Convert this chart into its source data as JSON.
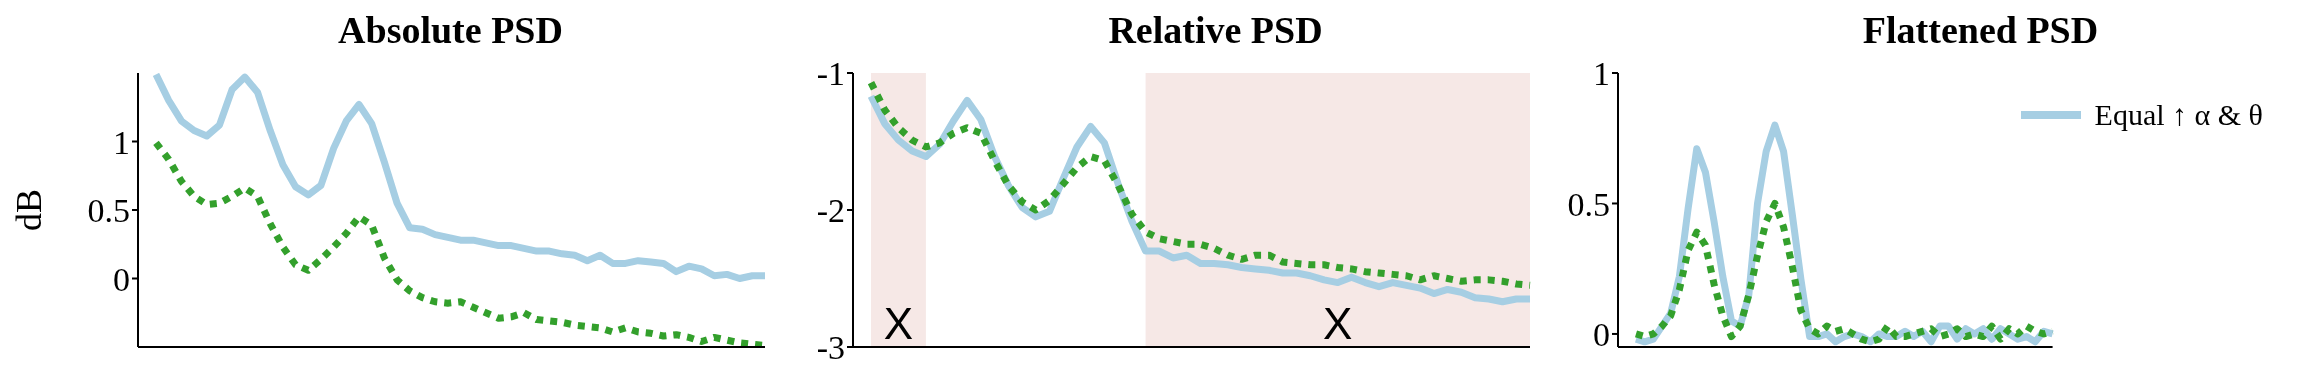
{
  "chart_data": [
    {
      "type": "line",
      "title": "Absolute PSD",
      "ylabel": "dB",
      "tick_labels": "y",
      "ylim": [
        -0.5,
        1.5
      ],
      "yticks": [
        0,
        0.5,
        1
      ],
      "categories": [
        null,
        null,
        null,
        null,
        null,
        null,
        null,
        null,
        null,
        null,
        null,
        null,
        null,
        null,
        null,
        null,
        null,
        null,
        null,
        null,
        null,
        null,
        null,
        null,
        null,
        null,
        null,
        null,
        null,
        null,
        null,
        null,
        null,
        null,
        null,
        null,
        null,
        null,
        null,
        null,
        null,
        null,
        null,
        null,
        null,
        null,
        null,
        null,
        null
      ],
      "series": [
        {
          "color": "#a6cee3",
          "line_style": "solid",
          "values": [
            1.49,
            1.3,
            1.15,
            1.08,
            1.04,
            1.12,
            1.38,
            1.47,
            1.36,
            1.08,
            0.83,
            0.67,
            0.61,
            0.68,
            0.95,
            1.15,
            1.27,
            1.13,
            0.85,
            0.55,
            0.37,
            0.36,
            0.32,
            0.3,
            0.28,
            0.28,
            0.26,
            0.24,
            0.24,
            0.22,
            0.2,
            0.2,
            0.18,
            0.17,
            0.13,
            0.17,
            0.11,
            0.11,
            0.13,
            0.12,
            0.11,
            0.05,
            0.09,
            0.07,
            0.02,
            0.03,
            0.0,
            0.02,
            0.02
          ]
        },
        {
          "color": "#33a02c",
          "line_style": "dotted",
          "values": [
            0.99,
            0.87,
            0.71,
            0.6,
            0.54,
            0.55,
            0.6,
            0.66,
            0.6,
            0.4,
            0.23,
            0.1,
            0.06,
            0.14,
            0.23,
            0.33,
            0.45,
            0.39,
            0.15,
            -0.01,
            -0.09,
            -0.14,
            -0.17,
            -0.18,
            -0.17,
            -0.21,
            -0.25,
            -0.29,
            -0.28,
            -0.25,
            -0.3,
            -0.31,
            -0.32,
            -0.34,
            -0.35,
            -0.36,
            -0.39,
            -0.36,
            -0.39,
            -0.4,
            -0.42,
            -0.41,
            -0.43,
            -0.46,
            -0.43,
            -0.45,
            -0.47,
            -0.48,
            -0.49
          ]
        }
      ]
    },
    {
      "type": "line",
      "title": "Relative PSD",
      "tick_labels": "y",
      "ylim": [
        -3,
        -1
      ],
      "yticks": [
        -1,
        -2,
        -3
      ],
      "categories": [
        null,
        null,
        null,
        null,
        null,
        null,
        null,
        null,
        null,
        null,
        null,
        null,
        null,
        null,
        null,
        null,
        null,
        null,
        null,
        null,
        null,
        null,
        null,
        null,
        null,
        null,
        null,
        null,
        null,
        null,
        null,
        null,
        null,
        null,
        null,
        null,
        null,
        null,
        null,
        null,
        null,
        null,
        null,
        null,
        null,
        null,
        null,
        null,
        null
      ],
      "annotations": [
        "X",
        "X"
      ],
      "series": [
        {
          "color": "#a6cee3",
          "line_style": "solid",
          "values": [
            -1.17,
            -1.37,
            -1.49,
            -1.57,
            -1.61,
            -1.52,
            -1.35,
            -1.2,
            -1.34,
            -1.61,
            -1.82,
            -1.98,
            -2.05,
            -2.01,
            -1.77,
            -1.54,
            -1.39,
            -1.51,
            -1.81,
            -2.08,
            -2.3,
            -2.3,
            -2.35,
            -2.33,
            -2.39,
            -2.39,
            -2.4,
            -2.42,
            -2.43,
            -2.44,
            -2.46,
            -2.46,
            -2.48,
            -2.51,
            -2.53,
            -2.49,
            -2.53,
            -2.56,
            -2.53,
            -2.55,
            -2.57,
            -2.61,
            -2.58,
            -2.6,
            -2.64,
            -2.65,
            -2.67,
            -2.65,
            -2.65
          ]
        },
        {
          "color": "#33a02c",
          "line_style": "dotted",
          "values": [
            -1.07,
            -1.27,
            -1.4,
            -1.49,
            -1.54,
            -1.51,
            -1.44,
            -1.4,
            -1.44,
            -1.64,
            -1.82,
            -1.94,
            -2.0,
            -1.93,
            -1.81,
            -1.69,
            -1.61,
            -1.64,
            -1.82,
            -2.03,
            -2.16,
            -2.21,
            -2.23,
            -2.25,
            -2.25,
            -2.28,
            -2.33,
            -2.36,
            -2.33,
            -2.33,
            -2.38,
            -2.39,
            -2.4,
            -2.4,
            -2.42,
            -2.43,
            -2.45,
            -2.46,
            -2.47,
            -2.48,
            -2.51,
            -2.48,
            -2.5,
            -2.52,
            -2.51,
            -2.51,
            -2.52,
            -2.54,
            -2.55
          ]
        }
      ]
    },
    {
      "type": "line",
      "title": "Flattened PSD",
      "tick_labels": "y",
      "legend": "top right",
      "ylim": [
        -0.05,
        1
      ],
      "yticks": [
        0,
        0.5,
        1
      ],
      "categories": [
        null,
        null,
        null,
        null,
        null,
        null,
        null,
        null,
        null,
        null,
        null,
        null,
        null,
        null,
        null,
        null,
        null,
        null,
        null,
        null,
        null,
        null,
        null,
        null,
        null,
        null,
        null,
        null,
        null,
        null,
        null,
        null,
        null,
        null,
        null,
        null,
        null,
        null,
        null,
        null,
        null,
        null,
        null,
        null,
        null,
        null,
        null,
        null,
        null
      ],
      "series": [
        {
          "name": "Equal ↑ α & θ",
          "color": "#a6cee3",
          "line_style": "solid",
          "values": [
            -0.02,
            -0.03,
            -0.02,
            0.03,
            0.08,
            0.22,
            0.48,
            0.71,
            0.62,
            0.43,
            0.22,
            0.05,
            0.03,
            0.15,
            0.5,
            0.7,
            0.8,
            0.7,
            0.46,
            0.21,
            -0.01,
            -0.01,
            0.0,
            -0.03,
            -0.01,
            0.0,
            -0.01,
            -0.03,
            0.0,
            -0.01,
            -0.01,
            0.01,
            -0.01,
            0.01,
            -0.03,
            0.03,
            0.03,
            -0.02,
            0.02,
            0.0,
            0.02,
            -0.02,
            0.02,
            0.0,
            -0.02,
            -0.01,
            -0.03,
            0.01,
            0.0
          ]
        },
        {
          "color": "#33a02c",
          "line_style": "dotted",
          "values": [
            0.0,
            -0.01,
            0.0,
            0.03,
            0.07,
            0.17,
            0.32,
            0.39,
            0.34,
            0.19,
            0.07,
            -0.01,
            0.03,
            0.15,
            0.3,
            0.43,
            0.5,
            0.41,
            0.26,
            0.09,
            0.02,
            0.0,
            0.03,
            0.01,
            0.02,
            0.0,
            -0.02,
            -0.03,
            -0.02,
            0.03,
            -0.01,
            -0.01,
            0.0,
            0.01,
            0.02,
            -0.01,
            0.0,
            0.02,
            -0.01,
            0.0,
            -0.01,
            0.03,
            -0.02,
            0.02,
            0.0,
            0.03,
            0.01,
            0.0,
            0.01
          ]
        }
      ]
    }
  ]
}
